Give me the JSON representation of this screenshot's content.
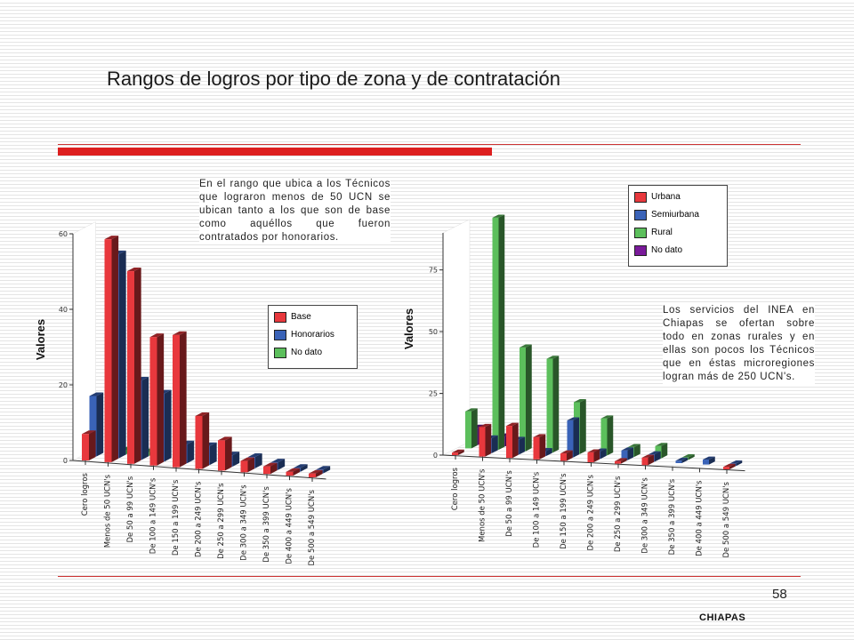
{
  "slide": {
    "title": "Rangos de logros por tipo de zona y de contratación",
    "page_number": "58",
    "footer": "CHIAPAS"
  },
  "notes": {
    "left": "En el rango que ubica  a los Técnicos que lograron menos de 50 UCN se ubican tanto a los que son de base como aquéllos que fueron contratados por honorarios.",
    "right": "Los servicios del INEA en Chiapas se ofertan sobre todo en zonas rurales y en ellas son pocos los Técnicos que en éstas microregiones logran más de 250 UCN's."
  },
  "colors": {
    "base": "#e8383d",
    "honorarios": "#3a63b8",
    "no_dato_left": "#5cbf5c",
    "urbana": "#e8383d",
    "semiurbana": "#3a63b8",
    "rural": "#5cbf5c",
    "no_dato_right": "#7a1a9a"
  },
  "chart_data": [
    {
      "type": "bar",
      "title": "",
      "xlabel": "",
      "ylabel": "Valores",
      "ylim": [
        0,
        60
      ],
      "yticks": [
        "0",
        "20",
        "40",
        "60"
      ],
      "categories": [
        "Cero logros",
        "Menos de 50 UCN's",
        "De 50 a 99 UCN's",
        "De 100 a 149 UCN's",
        "De 150 a 199 UCN's",
        "De 200 a 249 UCN's",
        "De 250 a 299 UCN's",
        "De 300 a 349 UCN's",
        "De 350 a 399 UCN's",
        "De 400 a 449 UCN's",
        "De 500 a 549 UCN's"
      ],
      "series": [
        {
          "name": "Base",
          "color_key": "base",
          "values": [
            7,
            59,
            51,
            34,
            35,
            14,
            8,
            3,
            2,
            1,
            1
          ]
        },
        {
          "name": "Honorarios",
          "color_key": "honorarios",
          "values": [
            16,
            54,
            21,
            18,
            5,
            5,
            3,
            3,
            2,
            1,
            1
          ]
        },
        {
          "name": "No dato",
          "color_key": "no_dato_left",
          "values": [
            0,
            1,
            1,
            0,
            0,
            0,
            0,
            0,
            0,
            0,
            0
          ]
        }
      ],
      "legend": [
        "Base",
        "Honorarios",
        "No dato"
      ],
      "legend_position": "right"
    },
    {
      "type": "bar",
      "title": "",
      "xlabel": "",
      "ylabel": "Valores",
      "ylim": [
        0,
        90
      ],
      "yticks": [
        "0",
        "25",
        "50",
        "75"
      ],
      "categories": [
        "Cero logros",
        "Menos de 50 UCN's",
        "De 50 a 99 UCN's",
        "De 100 a 149 UCN's",
        "De 150 a 199 UCN's",
        "De 200 a 249 UCN's",
        "De 250 a 299 UCN's",
        "De 300 a 349 UCN's",
        "De 350 a 399 UCN's",
        "De 400 a 449 UCN's",
        "De 500 a 549 UCN's"
      ],
      "series": [
        {
          "name": "Urbana",
          "color_key": "urbana",
          "values": [
            1,
            12,
            13,
            9,
            3,
            4,
            1,
            3,
            0,
            0,
            1
          ]
        },
        {
          "name": "Semiurbana",
          "color_key": "semiurbana",
          "values": [
            0,
            6,
            6,
            2,
            15,
            3,
            4,
            3,
            1,
            2,
            1
          ]
        },
        {
          "name": "Rural",
          "color_key": "rural",
          "values": [
            15,
            94,
            42,
            38,
            21,
            15,
            4,
            5,
            1,
            0,
            0
          ]
        },
        {
          "name": "No dato",
          "color_key": "no_dato_right",
          "values": [
            7,
            4,
            0,
            0,
            0,
            0,
            0,
            0,
            0,
            0,
            0
          ]
        }
      ],
      "legend": [
        "Urbana",
        "Semiurbana",
        "Rural",
        "No dato"
      ],
      "legend_position": "top-right"
    }
  ]
}
